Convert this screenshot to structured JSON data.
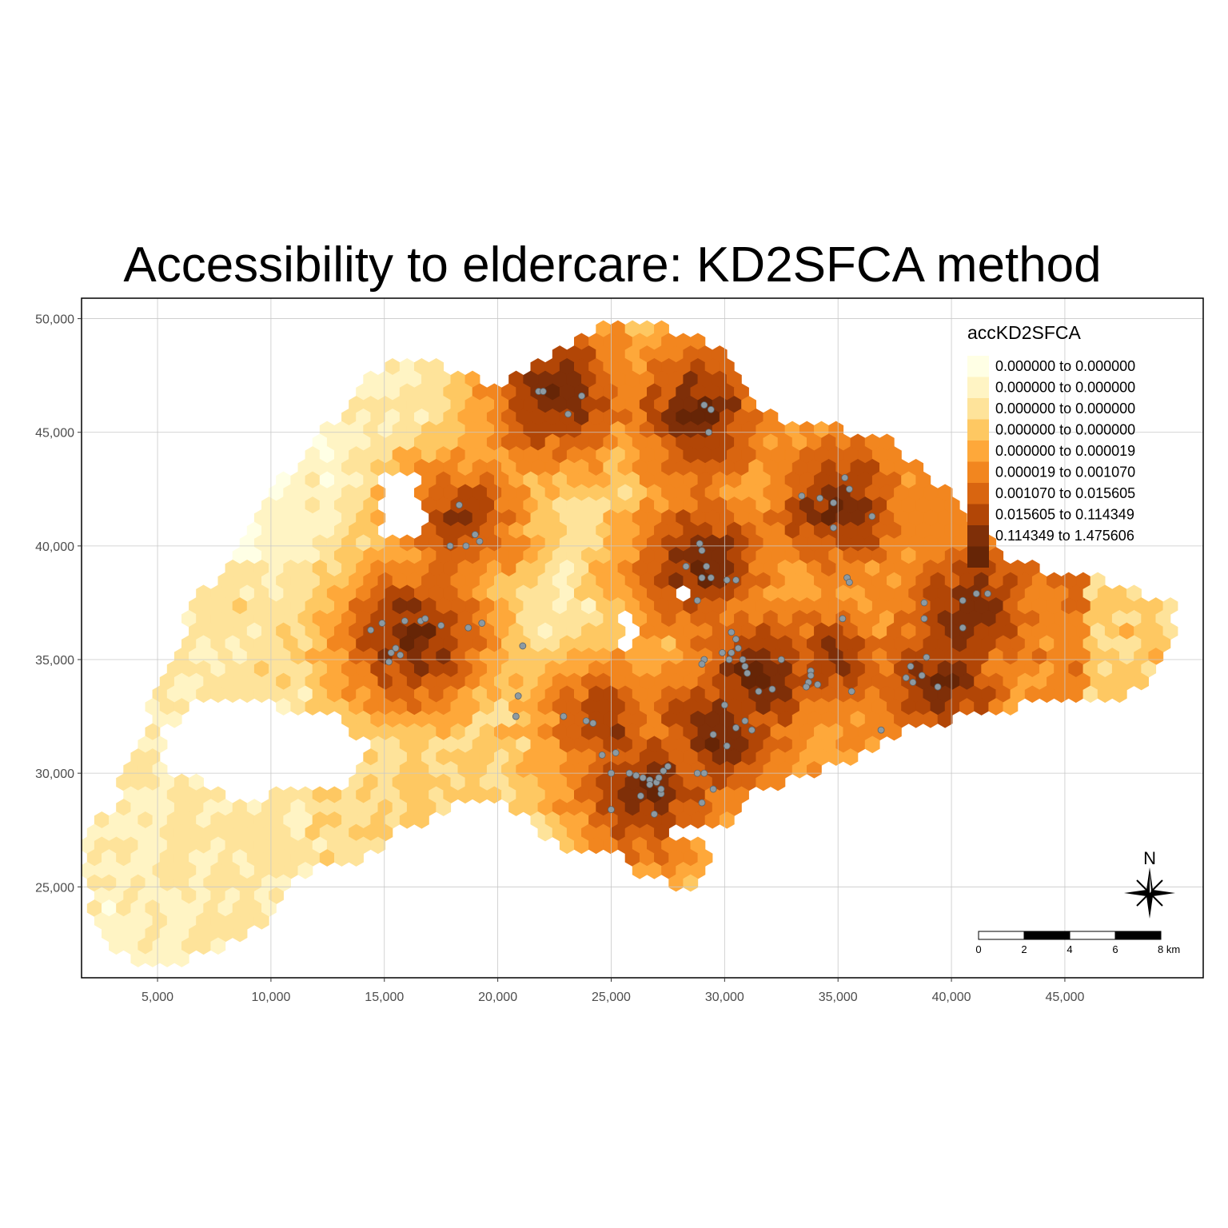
{
  "title": "Accessibility to eldercare: KD2SFCA method",
  "legend": {
    "title": "accKD2SFCA",
    "classes": [
      {
        "label": "0.000000 to 0.000000",
        "color": "#ffffe5"
      },
      {
        "label": "0.000000 to 0.000000",
        "color": "#fff4c4"
      },
      {
        "label": "0.000000 to 0.000000",
        "color": "#fee39a"
      },
      {
        "label": "0.000000 to 0.000000",
        "color": "#fec862"
      },
      {
        "label": "0.000000 to 0.000019",
        "color": "#fea83a"
      },
      {
        "label": "0.000019 to 0.001070",
        "color": "#f2861f"
      },
      {
        "label": "0.001070 to 0.015605",
        "color": "#d96510"
      },
      {
        "label": "0.015605 to 0.114349",
        "color": "#b24606"
      },
      {
        "label": "0.114349 to 1.475606",
        "color": "#7f2f08"
      },
      {
        "label": "",
        "color": "#662506"
      }
    ]
  },
  "x_axis": {
    "ticks": [
      5000,
      10000,
      15000,
      20000,
      25000,
      30000,
      35000,
      40000,
      45000
    ],
    "labels": [
      "5,000",
      "10,000",
      "15,000",
      "20,000",
      "25,000",
      "30,000",
      "35,000",
      "40,000",
      "45,000"
    ],
    "range": [
      1650,
      51100
    ]
  },
  "y_axis": {
    "ticks": [
      25000,
      30000,
      35000,
      40000,
      45000,
      50000
    ],
    "labels": [
      "25,000",
      "30,000",
      "35,000",
      "40,000",
      "45,000",
      "50,000"
    ],
    "range": [
      21000,
      50900
    ]
  },
  "compass": {
    "label": "N"
  },
  "scale_bar": {
    "labels": [
      "0",
      "2",
      "4",
      "6",
      "8 km"
    ]
  },
  "colors": {
    "facility_point": "#8c9aa3",
    "grid": "#c8c8c8",
    "frame": "#000000"
  },
  "chart_data": {
    "type": "heatmap",
    "title": "Accessibility to eldercare: KD2SFCA method",
    "legend_title": "accKD2SFCA",
    "legend_placement": "top-right",
    "grid": true,
    "xlim": [
      1650,
      51100
    ],
    "ylim": [
      21000,
      50900
    ],
    "hotspots": [
      {
        "x": 22700,
        "y": 46800,
        "class": 9
      },
      {
        "x": 28900,
        "y": 45800,
        "class": 9
      },
      {
        "x": 18400,
        "y": 41200,
        "class": 8
      },
      {
        "x": 35000,
        "y": 41800,
        "class": 9
      },
      {
        "x": 29000,
        "y": 39200,
        "class": 9
      },
      {
        "x": 16300,
        "y": 36000,
        "class": 9
      },
      {
        "x": 24800,
        "y": 32200,
        "class": 8
      },
      {
        "x": 29800,
        "y": 31800,
        "class": 9
      },
      {
        "x": 26500,
        "y": 29300,
        "class": 9
      },
      {
        "x": 34800,
        "y": 35000,
        "class": 8
      },
      {
        "x": 39500,
        "y": 34000,
        "class": 9
      },
      {
        "x": 40800,
        "y": 37200,
        "class": 9
      },
      {
        "x": 31500,
        "y": 34200,
        "class": 9
      }
    ],
    "facilities": [
      [
        21800,
        46800
      ],
      [
        22000,
        46800
      ],
      [
        23700,
        46600
      ],
      [
        23100,
        45800
      ],
      [
        29100,
        46200
      ],
      [
        29400,
        46000
      ],
      [
        29300,
        45000
      ],
      [
        18300,
        41800
      ],
      [
        19000,
        40500
      ],
      [
        19200,
        40200
      ],
      [
        17900,
        40000
      ],
      [
        18600,
        40000
      ],
      [
        35300,
        43000
      ],
      [
        35500,
        42500
      ],
      [
        34200,
        42100
      ],
      [
        33400,
        42200
      ],
      [
        34800,
        41900
      ],
      [
        36500,
        41300
      ],
      [
        34800,
        40800
      ],
      [
        28900,
        40100
      ],
      [
        29000,
        39800
      ],
      [
        28300,
        39100
      ],
      [
        29200,
        39100
      ],
      [
        29000,
        38600
      ],
      [
        29400,
        38600
      ],
      [
        30100,
        38500
      ],
      [
        30500,
        38500
      ],
      [
        28800,
        37600
      ],
      [
        35400,
        38600
      ],
      [
        35500,
        38400
      ],
      [
        35200,
        36800
      ],
      [
        14900,
        36600
      ],
      [
        15900,
        36700
      ],
      [
        16600,
        36700
      ],
      [
        16800,
        36800
      ],
      [
        14400,
        36300
      ],
      [
        17500,
        36500
      ],
      [
        18700,
        36400
      ],
      [
        19300,
        36600
      ],
      [
        15500,
        35500
      ],
      [
        15300,
        35300
      ],
      [
        15700,
        35200
      ],
      [
        15200,
        34900
      ],
      [
        21100,
        35600
      ],
      [
        20900,
        33400
      ],
      [
        20800,
        32500
      ],
      [
        22900,
        32500
      ],
      [
        23900,
        32300
      ],
      [
        24200,
        32200
      ],
      [
        30300,
        36200
      ],
      [
        30500,
        35900
      ],
      [
        30600,
        35500
      ],
      [
        30300,
        35300
      ],
      [
        29900,
        35300
      ],
      [
        30200,
        35000
      ],
      [
        30800,
        35000
      ],
      [
        30900,
        34700
      ],
      [
        31000,
        34400
      ],
      [
        29100,
        35000
      ],
      [
        29000,
        34800
      ],
      [
        31500,
        33600
      ],
      [
        32100,
        33700
      ],
      [
        32500,
        35000
      ],
      [
        33800,
        34500
      ],
      [
        33700,
        34000
      ],
      [
        33600,
        33800
      ],
      [
        34100,
        33900
      ],
      [
        30000,
        33000
      ],
      [
        30500,
        32000
      ],
      [
        30900,
        32300
      ],
      [
        31200,
        31900
      ],
      [
        29500,
        31700
      ],
      [
        30100,
        31200
      ],
      [
        33800,
        34300
      ],
      [
        35600,
        33600
      ],
      [
        36900,
        31900
      ],
      [
        38000,
        34200
      ],
      [
        38300,
        34000
      ],
      [
        38700,
        34300
      ],
      [
        38900,
        35100
      ],
      [
        39400,
        33800
      ],
      [
        38200,
        34700
      ],
      [
        38800,
        37500
      ],
      [
        38800,
        36800
      ],
      [
        40500,
        37600
      ],
      [
        41100,
        37900
      ],
      [
        41600,
        37900
      ],
      [
        40500,
        36400
      ],
      [
        24600,
        30800
      ],
      [
        25200,
        30900
      ],
      [
        25000,
        30000
      ],
      [
        25800,
        30000
      ],
      [
        26100,
        29900
      ],
      [
        26400,
        29800
      ],
      [
        26700,
        29700
      ],
      [
        27000,
        29600
      ],
      [
        27500,
        30300
      ],
      [
        27300,
        30100
      ],
      [
        27100,
        29800
      ],
      [
        28800,
        30000
      ],
      [
        29100,
        30000
      ],
      [
        26300,
        29000
      ],
      [
        29000,
        28700
      ],
      [
        25000,
        28400
      ],
      [
        26900,
        28200
      ],
      [
        27200,
        29100
      ],
      [
        29500,
        29300
      ],
      [
        26700,
        29500
      ],
      [
        27200,
        29300
      ]
    ]
  }
}
